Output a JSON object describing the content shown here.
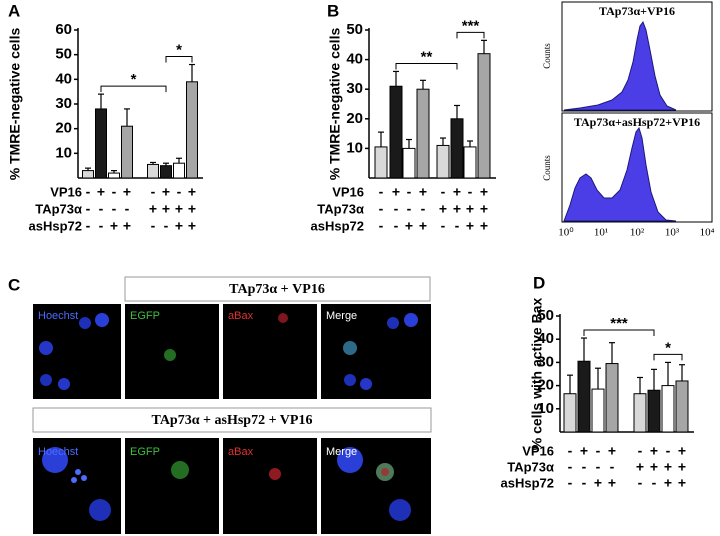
{
  "panel_labels": [
    "A",
    "B",
    "C",
    "D"
  ],
  "chart_data": [
    {
      "type": "bar",
      "y_label": "% TMRE-negative cells",
      "ylim": [
        0,
        60
      ],
      "yticks": [
        10,
        20,
        30,
        40,
        50,
        60
      ],
      "values": [
        3,
        28,
        2,
        21,
        5.5,
        5,
        6,
        39
      ],
      "errors": [
        1,
        6,
        1,
        7,
        0.8,
        1,
        2,
        7
      ],
      "colors": [
        "#d9d9d9",
        "#1a1a1a",
        "#ffffff",
        "#a6a6a6",
        "#d9d9d9",
        "#1a1a1a",
        "#ffffff",
        "#a6a6a6"
      ],
      "conditions": [
        {
          "name": "VP16",
          "signs": [
            "-",
            "+",
            "-",
            "+",
            "-",
            "+",
            "-",
            "+"
          ]
        },
        {
          "name": "TAp73α",
          "signs": [
            "-",
            "-",
            "-",
            "-",
            "+",
            "+",
            "+",
            "+"
          ]
        },
        {
          "name": "asHsp72",
          "signs": [
            "-",
            "-",
            "+",
            "+",
            "-",
            "-",
            "+",
            "+"
          ]
        }
      ],
      "annotations": [
        {
          "text": "*",
          "from": 1,
          "to": 5
        },
        {
          "text": "*",
          "from": 5,
          "to": 7
        }
      ]
    },
    {
      "type": "bar",
      "y_label": "% TMRE-negative cells",
      "ylim": [
        0,
        50
      ],
      "yticks": [
        10,
        20,
        30,
        40,
        50
      ],
      "values": [
        10.5,
        31,
        10,
        30,
        11,
        20,
        10.5,
        42
      ],
      "errors": [
        5,
        5,
        3,
        3,
        2.5,
        4.5,
        2,
        4.5
      ],
      "colors": [
        "#d9d9d9",
        "#1a1a1a",
        "#ffffff",
        "#a6a6a6",
        "#d9d9d9",
        "#1a1a1a",
        "#ffffff",
        "#a6a6a6"
      ],
      "conditions": [
        {
          "name": "VP16",
          "signs": [
            "-",
            "+",
            "-",
            "+",
            "-",
            "+",
            "-",
            "+"
          ]
        },
        {
          "name": "TAp73α",
          "signs": [
            "-",
            "-",
            "-",
            "-",
            "+",
            "+",
            "+",
            "+"
          ]
        },
        {
          "name": "asHsp72",
          "signs": [
            "-",
            "-",
            "+",
            "+",
            "-",
            "-",
            "+",
            "+"
          ]
        }
      ],
      "annotations": [
        {
          "text": "**",
          "from": 1,
          "to": 5
        },
        {
          "text": "***",
          "from": 5,
          "to": 7
        }
      ]
    },
    {
      "type": "bar",
      "y_label": "% cells with active Bax",
      "ylim": [
        0,
        50
      ],
      "yticks": [
        10,
        20,
        30,
        40,
        50
      ],
      "values": [
        16.5,
        30.5,
        18.5,
        29.5,
        16.5,
        18,
        20,
        22
      ],
      "errors": [
        8,
        10,
        9,
        9,
        7,
        9,
        10,
        7
      ],
      "colors": [
        "#d9d9d9",
        "#1a1a1a",
        "#ffffff",
        "#a6a6a6",
        "#d9d9d9",
        "#1a1a1a",
        "#ffffff",
        "#a6a6a6"
      ],
      "conditions": [
        {
          "name": "VP16",
          "signs": [
            "-",
            "+",
            "-",
            "+",
            "-",
            "+",
            "-",
            "+"
          ]
        },
        {
          "name": "TAp73α",
          "signs": [
            "-",
            "-",
            "-",
            "-",
            "+",
            "+",
            "+",
            "+"
          ]
        },
        {
          "name": "asHsp72",
          "signs": [
            "-",
            "-",
            "+",
            "+",
            "-",
            "-",
            "+",
            "+"
          ]
        }
      ],
      "annotations": [
        {
          "text": "***",
          "from": 1,
          "to": 5
        },
        {
          "text": "*",
          "from": 5,
          "to": 7
        }
      ]
    }
  ],
  "flow_cytometry": {
    "y_label": "Counts",
    "xticks": [
      "10⁰",
      "10¹",
      "10²",
      "10³",
      "10⁴"
    ],
    "panels": [
      "TAp73α+VP16",
      "TAp73α+asHsp72+VP16"
    ]
  },
  "microscopy": {
    "rows": [
      {
        "title": "TAp73α + VP16",
        "channels": [
          "Hoechst",
          "EGFP",
          "aBax",
          "Merge"
        ]
      },
      {
        "title": "TAp73α + asHsp72 + VP16",
        "channels": [
          "Hoechst",
          "EGFP",
          "aBax",
          "Merge"
        ]
      }
    ]
  }
}
